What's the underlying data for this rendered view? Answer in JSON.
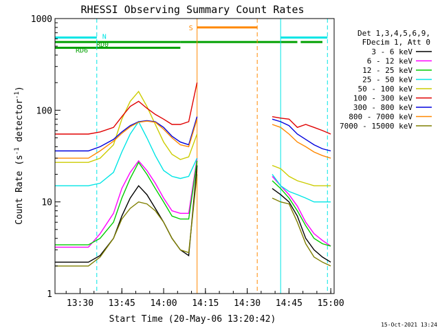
{
  "chart_data": {
    "type": "line",
    "title": "RHESSI Observing Summary Count Rates",
    "xlabel": "Start Time (20-May-06 13:20:42)",
    "ylabel": "Count Rate (s",
    "ylabel_sup1": "-1",
    "ylabel_mid": " detector",
    "ylabel_sup2": "-1",
    "ylabel_end": ")",
    "yscale": "log",
    "ylim": [
      1,
      1000
    ],
    "xlim_minutes": [
      13.35,
      15.02
    ],
    "x_ticks": [
      "13:30",
      "13:45",
      "14:00",
      "14:15",
      "14:30",
      "14:45",
      "15:00"
    ],
    "x_tick_values": [
      13.5,
      13.75,
      14.0,
      14.25,
      14.5,
      14.75,
      15.0
    ],
    "y_ticks": [
      "1",
      "10",
      "100",
      "1000"
    ],
    "y_tick_values": [
      1,
      10,
      100,
      1000
    ],
    "footer_date": "15-Oct-2021 13:24",
    "legend": {
      "header": [
        "Det 1,3,4,5,6,9,",
        "FDecim 1, Att 0"
      ],
      "entries": [
        {
          "label": "3 - 6 keV",
          "color": "#000000"
        },
        {
          "label": "6 - 12 keV",
          "color": "#ff00ff"
        },
        {
          "label": "12 - 25 keV",
          "color": "#00cc00"
        },
        {
          "label": "25 - 50 keV",
          "color": "#00e5e5"
        },
        {
          "label": "50 - 100 keV",
          "color": "#cccc00"
        },
        {
          "label": "100 - 300 keV",
          "color": "#e00000"
        },
        {
          "label": "300 - 800 keV",
          "color": "#0000dd"
        },
        {
          "label": "800 - 7000 keV",
          "color": "#ff8800"
        },
        {
          "label": "7000 - 15000 keV",
          "color": "#7f7f00"
        }
      ]
    },
    "flag_bars": [
      {
        "label": "N",
        "color": "#00e5e5",
        "level": 620,
        "spans": [
          [
            13.35,
            13.6
          ],
          [
            14.7,
            14.98
          ]
        ]
      },
      {
        "label": "RD0",
        "color": "#00a000",
        "level": 555,
        "spans": [
          [
            13.35,
            14.1
          ],
          [
            14.1,
            14.56
          ],
          [
            14.56,
            14.8
          ],
          [
            14.82,
            14.95
          ]
        ]
      },
      {
        "label": "RD6",
        "color": "#00a000",
        "level": 480,
        "spans": [
          [
            13.35,
            14.1
          ]
        ]
      },
      {
        "label": "S",
        "color": "#ff8800",
        "level": 800,
        "spans": [
          [
            14.2,
            14.56
          ]
        ]
      }
    ],
    "vertical_lines": [
      {
        "x": 13.35,
        "color": "#00e5e5",
        "dashed": false
      },
      {
        "x": 13.6,
        "color": "#00e5e5",
        "dashed": true
      },
      {
        "x": 14.2,
        "color": "#ff8800",
        "dashed": false
      },
      {
        "x": 14.56,
        "color": "#ff8800",
        "dashed": true
      },
      {
        "x": 14.7,
        "color": "#00e5e5",
        "dashed": false
      },
      {
        "x": 14.98,
        "color": "#00e5e5",
        "dashed": true
      }
    ],
    "gap": [
      14.2,
      14.65
    ],
    "series": [
      {
        "name": "3 - 6 keV",
        "color": "#000000",
        "x": [
          13.35,
          13.55,
          13.62,
          13.7,
          13.75,
          13.8,
          13.85,
          13.9,
          13.95,
          14.0,
          14.05,
          14.1,
          14.15,
          14.2,
          14.65,
          14.7,
          14.75,
          14.8,
          14.85,
          14.9,
          14.95,
          15.0
        ],
        "y": [
          2.2,
          2.2,
          2.6,
          4.0,
          7.0,
          11.0,
          15.0,
          12.0,
          8.5,
          6.0,
          4.0,
          3.0,
          2.6,
          25,
          14,
          12,
          10,
          7.0,
          4.0,
          3.0,
          2.5,
          2.2
        ]
      },
      {
        "name": "6 - 12 keV",
        "color": "#ff00ff",
        "x": [
          13.35,
          13.55,
          13.62,
          13.7,
          13.75,
          13.8,
          13.85,
          13.9,
          13.95,
          14.0,
          14.05,
          14.1,
          14.15,
          14.2,
          14.65,
          14.7,
          14.75,
          14.8,
          14.85,
          14.9,
          14.95,
          15.0
        ],
        "y": [
          3.2,
          3.2,
          4.5,
          7.5,
          14,
          21,
          28,
          22,
          16,
          11,
          8.0,
          7.5,
          7.5,
          30,
          19,
          15,
          12,
          9.0,
          6.0,
          4.5,
          3.8,
          3.3
        ]
      },
      {
        "name": "12 - 25 keV",
        "color": "#00cc00",
        "x": [
          13.35,
          13.55,
          13.62,
          13.7,
          13.75,
          13.8,
          13.85,
          13.9,
          13.95,
          14.0,
          14.05,
          14.1,
          14.15,
          14.2,
          14.65,
          14.7,
          14.75,
          14.8,
          14.85,
          14.9,
          14.95,
          15.0
        ],
        "y": [
          3.4,
          3.4,
          4.0,
          6.0,
          11,
          18,
          27,
          20,
          14,
          10,
          7.0,
          6.5,
          6.5,
          28,
          17,
          14,
          11,
          8.0,
          5.5,
          4.0,
          3.5,
          3.3
        ]
      },
      {
        "name": "25 - 50 keV",
        "color": "#00e5e5",
        "x": [
          13.35,
          13.55,
          13.62,
          13.7,
          13.75,
          13.8,
          13.85,
          13.9,
          13.95,
          14.0,
          14.05,
          14.1,
          14.15,
          14.2,
          14.65,
          14.7,
          14.75,
          14.8,
          14.85,
          14.9,
          14.95,
          15.0
        ],
        "y": [
          15,
          15,
          16,
          21,
          35,
          55,
          75,
          50,
          32,
          22,
          19,
          18,
          19,
          30,
          20,
          15,
          13,
          12,
          11,
          10,
          10,
          10
        ]
      },
      {
        "name": "50 - 100 keV",
        "color": "#cccc00",
        "x": [
          13.35,
          13.55,
          13.62,
          13.7,
          13.75,
          13.8,
          13.85,
          13.9,
          13.95,
          14.0,
          14.05,
          14.1,
          14.15,
          14.2,
          14.65,
          14.7,
          14.75,
          14.8,
          14.85,
          14.9,
          14.95,
          15.0
        ],
        "y": [
          27,
          27,
          30,
          42,
          80,
          125,
          160,
          110,
          70,
          45,
          33,
          29,
          31,
          55,
          25,
          23,
          19,
          17,
          16,
          15,
          15,
          15
        ]
      },
      {
        "name": "100 - 300 keV",
        "color": "#e00000",
        "x": [
          13.35,
          13.55,
          13.62,
          13.7,
          13.75,
          13.8,
          13.85,
          13.9,
          13.95,
          14.0,
          14.05,
          14.1,
          14.15,
          14.2,
          14.65,
          14.7,
          14.75,
          14.8,
          14.85,
          14.9,
          14.95,
          15.0
        ],
        "y": [
          55,
          55,
          58,
          65,
          85,
          110,
          125,
          105,
          90,
          80,
          70,
          70,
          75,
          200,
          85,
          82,
          80,
          65,
          70,
          65,
          60,
          55
        ]
      },
      {
        "name": "300 - 800 keV",
        "color": "#0000dd",
        "x": [
          13.35,
          13.55,
          13.62,
          13.7,
          13.75,
          13.8,
          13.85,
          13.9,
          13.95,
          14.0,
          14.05,
          14.1,
          14.15,
          14.2,
          14.65,
          14.7,
          14.75,
          14.8,
          14.85,
          14.9,
          14.95,
          15.0
        ],
        "y": [
          36,
          36,
          40,
          48,
          58,
          68,
          75,
          77,
          75,
          65,
          52,
          45,
          42,
          85,
          80,
          75,
          68,
          55,
          48,
          42,
          38,
          36
        ]
      },
      {
        "name": "800 - 7000 keV",
        "color": "#ff8800",
        "x": [
          13.35,
          13.55,
          13.62,
          13.7,
          13.75,
          13.8,
          13.85,
          13.9,
          13.95,
          14.0,
          14.05,
          14.1,
          14.15,
          14.2,
          14.65,
          14.7,
          14.75,
          14.8,
          14.85,
          14.9,
          14.95,
          15.0
        ],
        "y": [
          30,
          30,
          36,
          46,
          56,
          66,
          74,
          76,
          74,
          62,
          50,
          42,
          40,
          80,
          70,
          65,
          55,
          45,
          40,
          35,
          32,
          30
        ]
      },
      {
        "name": "7000 - 15000 keV",
        "color": "#7f7f00",
        "x": [
          13.35,
          13.55,
          13.62,
          13.7,
          13.75,
          13.8,
          13.85,
          13.9,
          13.95,
          14.0,
          14.05,
          14.1,
          14.15,
          14.2,
          14.65,
          14.7,
          14.75,
          14.8,
          14.85,
          14.9,
          14.95,
          15.0
        ],
        "y": [
          2.0,
          2.0,
          2.5,
          4.0,
          6.5,
          8.5,
          10,
          9.5,
          8.0,
          6.0,
          4.0,
          3.0,
          2.8,
          20,
          11,
          10,
          9.5,
          6.0,
          3.5,
          2.5,
          2.2,
          2.0
        ]
      }
    ]
  }
}
